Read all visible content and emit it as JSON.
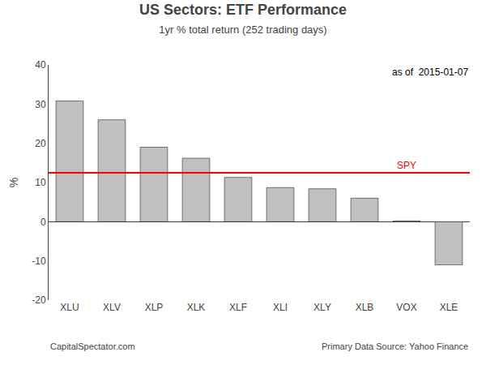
{
  "chart_data": {
    "type": "bar",
    "title": "US Sectors: ETF Performance",
    "subtitle": "1yr % total return (252 trading days)",
    "annotation": "as of  2015-01-07",
    "categories": [
      "XLU",
      "XLV",
      "XLP",
      "XLK",
      "XLF",
      "XLI",
      "XLY",
      "XLB",
      "VOX",
      "XLE"
    ],
    "values": [
      30.8,
      26.0,
      19.0,
      16.2,
      11.3,
      8.7,
      8.4,
      6.0,
      0.2,
      -11.0
    ],
    "color": "#C0C0C0",
    "reference_line": {
      "value": 12.5,
      "label": "SPY",
      "color": "#FF0000"
    },
    "ylabel": "%",
    "ylim": [
      -20,
      40
    ],
    "yticks": [
      -20,
      -10,
      0,
      10,
      20,
      30,
      40
    ],
    "grid": false,
    "footer_left": "CapitalSpectator.com",
    "footer_right": "Primary Data Source: Yahoo Finance"
  }
}
